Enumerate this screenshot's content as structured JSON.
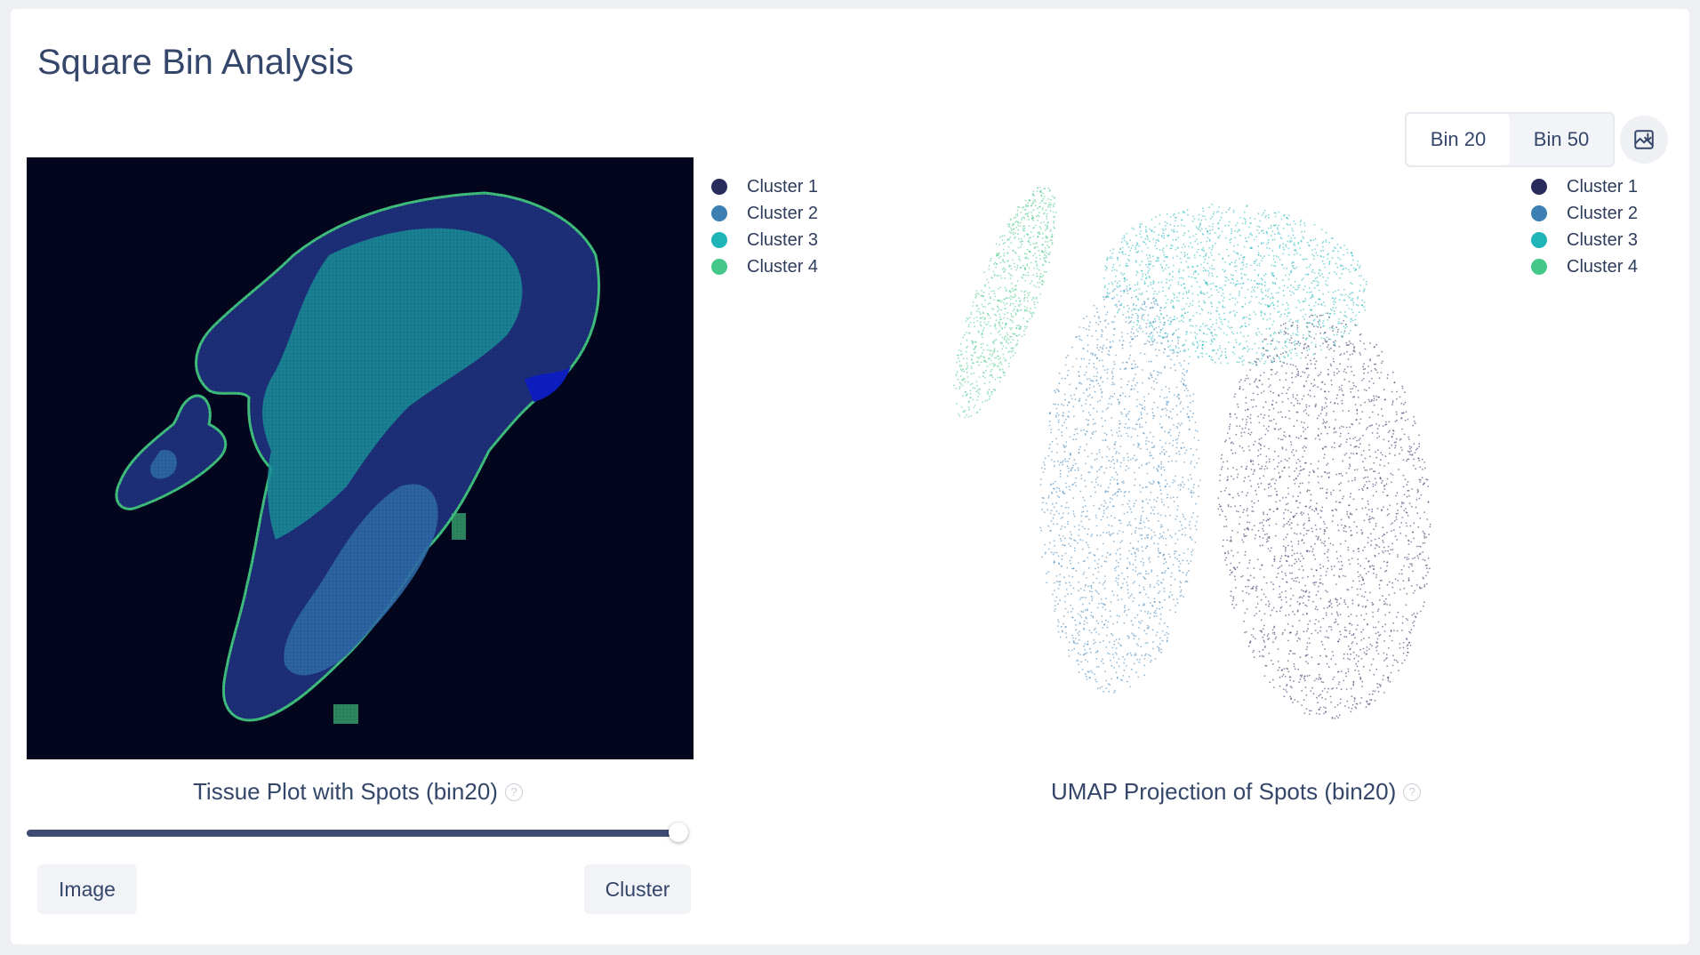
{
  "page": {
    "title": "Square Bin Analysis"
  },
  "bin_toggle": {
    "options": [
      "Bin 20",
      "Bin 50"
    ],
    "selected": "Bin 20"
  },
  "download": {
    "icon": "image-download-icon"
  },
  "legend": {
    "items": [
      {
        "label": "Cluster 1",
        "color": "#282b5c"
      },
      {
        "label": "Cluster 2",
        "color": "#3b7fb3"
      },
      {
        "label": "Cluster 3",
        "color": "#1fb5b8"
      },
      {
        "label": "Cluster 4",
        "color": "#44c788"
      }
    ]
  },
  "tissue": {
    "caption": "Tissue Plot with Spots (bin20)",
    "background": "#04061f",
    "slider_value": 1.0
  },
  "umap": {
    "caption": "UMAP Projection of Spots (bin20)"
  },
  "buttons": {
    "image": "Image",
    "cluster": "Cluster"
  },
  "help_icon": "?"
}
